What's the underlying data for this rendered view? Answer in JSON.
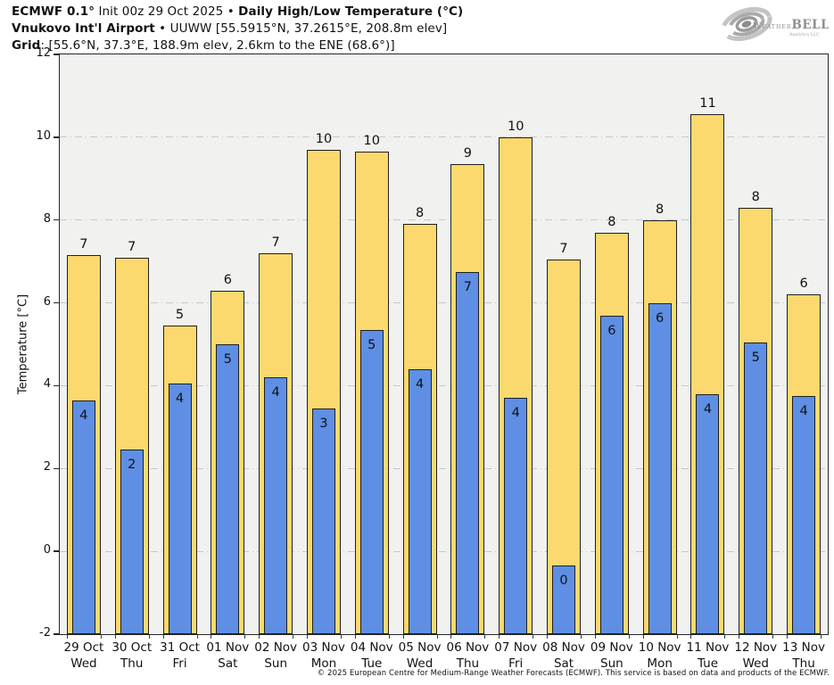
{
  "header": {
    "line1_bold1": "ECMWF 0.1°",
    "line1_normal": " Init 00z 29 Oct 2025 • ",
    "line1_bold2": "Daily High/Low Temperature (°C)",
    "line2_bold": "Vnukovo Int'l Airport",
    "line2_normal": " • UUWW [55.5915°N, 37.2615°E, 208.8m elev]",
    "line3_bold": "Grid",
    "line3_normal": ": [55.6°N, 37.3°E, 188.9m elev, 2.6km to the ENE (68.6°)]"
  },
  "logo": {
    "brand_part1": "Weather",
    "brand_part2": "BELL",
    "sub": "Analytics LLC"
  },
  "chart_data": {
    "type": "bar",
    "title": "Daily High/Low Temperature (°C)",
    "subtitle": "ECMWF 0.1° Init 00z 29 Oct 2025 — Vnukovo Int'l Airport (UUWW)",
    "xlabel": "",
    "ylabel": "Temperature [°C]",
    "ylim": [
      -2,
      12
    ],
    "yticks": [
      -2,
      0,
      2,
      4,
      6,
      8,
      10,
      12
    ],
    "grid": "horizontal dash-dot lines at ticks, legend none",
    "categories": [
      "29 Oct",
      "30 Oct",
      "31 Oct",
      "01 Nov",
      "02 Nov",
      "03 Nov",
      "04 Nov",
      "05 Nov",
      "06 Nov",
      "07 Nov",
      "08 Nov",
      "09 Nov",
      "10 Nov",
      "11 Nov",
      "12 Nov",
      "13 Nov"
    ],
    "weekdays": [
      "Wed",
      "Thu",
      "Fri",
      "Sat",
      "Sun",
      "Mon",
      "Tue",
      "Wed",
      "Thu",
      "Fri",
      "Sat",
      "Sun",
      "Mon",
      "Tue",
      "Wed",
      "Thu"
    ],
    "series": [
      {
        "name": "Daily High",
        "color": "#fbd96e",
        "values": [
          7.15,
          7.1,
          5.45,
          6.3,
          7.2,
          9.7,
          9.65,
          7.9,
          9.35,
          10.0,
          7.05,
          7.7,
          8.0,
          10.55,
          8.3,
          6.2
        ],
        "labels": [
          "7",
          "7",
          "5",
          "6",
          "7",
          "10",
          "10",
          "8",
          "9",
          "10",
          "7",
          "8",
          "8",
          "11",
          "8",
          "6"
        ]
      },
      {
        "name": "Daily Low",
        "color": "#5e8fe4",
        "values": [
          3.65,
          2.45,
          4.05,
          5.0,
          4.2,
          3.45,
          5.35,
          4.4,
          6.75,
          3.7,
          -0.35,
          5.7,
          6.0,
          3.8,
          5.05,
          3.75
        ],
        "labels": [
          "4",
          "2",
          "4",
          "5",
          "4",
          "3",
          "5",
          "4",
          "7",
          "4",
          "0",
          "6",
          "6",
          "4",
          "5",
          "4"
        ]
      }
    ]
  },
  "footer": "© 2025 European Centre for Medium-Range Weather Forecasts (ECMWF). This service is based on data and products of the ECMWF.",
  "colors": {
    "high_bar": "#fbd96e",
    "low_bar": "#5e8fe4",
    "bar_border": "#1f1f1f",
    "plot_background": "#f1f1f0",
    "gridline": "#c8c8c8",
    "text": "#111111",
    "logo_gray": "#9a9a9a"
  }
}
